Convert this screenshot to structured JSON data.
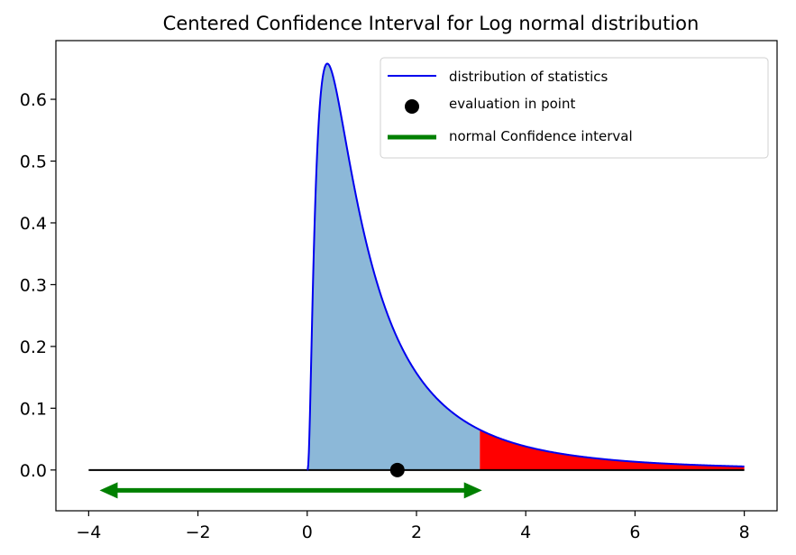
{
  "chart_data": {
    "type": "area",
    "title": "Centered Confidence Interval for Log normal distribution",
    "xlabel": "",
    "ylabel": "",
    "xlim": [
      -4.6,
      8.6
    ],
    "ylim": [
      -0.066,
      0.695
    ],
    "xticks": [
      -4,
      -2,
      0,
      2,
      4,
      6,
      8
    ],
    "xtick_labels": [
      "−4",
      "−2",
      "0",
      "2",
      "4",
      "6",
      "8"
    ],
    "yticks": [
      0.0,
      0.1,
      0.2,
      0.3,
      0.4,
      0.5,
      0.6
    ],
    "ytick_labels": [
      "0.0",
      "0.1",
      "0.2",
      "0.3",
      "0.4",
      "0.5",
      "0.6"
    ],
    "grid": false,
    "legend_position": "top-right",
    "distribution": {
      "name": "lognormal",
      "mu": 0,
      "sigma": 1,
      "x_range": [
        0,
        8
      ]
    },
    "baseline": {
      "x_range": [
        -4,
        8
      ],
      "y": 0
    },
    "shaded_regions": [
      {
        "x_range": [
          0,
          3.16
        ],
        "color": "#8cb8d8"
      },
      {
        "x_range": [
          3.16,
          8
        ],
        "color": "#ff0000"
      }
    ],
    "series": [
      {
        "name": "distribution of statistics",
        "kind": "line",
        "color": "#0000ee"
      },
      {
        "name": "evaluation in point",
        "kind": "point",
        "x": 1.65,
        "y": 0,
        "color": "#000000"
      },
      {
        "name": "normal Confidence interval",
        "kind": "interval",
        "x_range": [
          -3.8,
          3.2
        ],
        "y": -0.033,
        "color": "#008000"
      }
    ]
  }
}
